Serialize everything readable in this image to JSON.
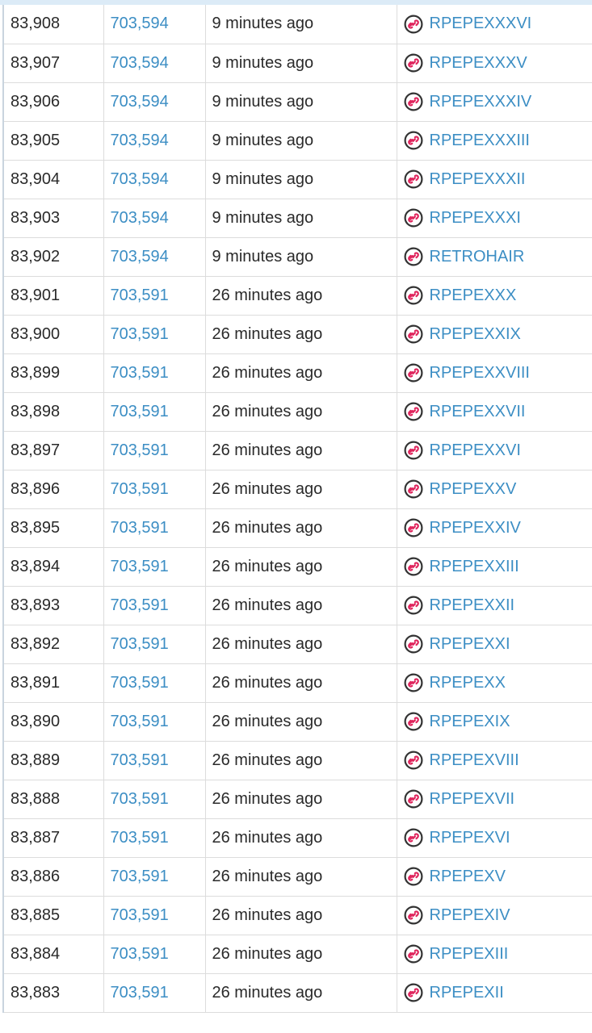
{
  "colors": {
    "link": "#3c8ec4",
    "text": "#2a2a2a",
    "icon_outline": "#333333",
    "icon_accent": "#e0255d",
    "header_strip": "#dcebf7"
  },
  "asset_icon": "chain-link-icon",
  "rows": [
    {
      "id": "83,908",
      "block": "703,594",
      "time": "9 minutes ago",
      "asset": "RPEPEXXXVI"
    },
    {
      "id": "83,907",
      "block": "703,594",
      "time": "9 minutes ago",
      "asset": "RPEPEXXXV"
    },
    {
      "id": "83,906",
      "block": "703,594",
      "time": "9 minutes ago",
      "asset": "RPEPEXXXIV"
    },
    {
      "id": "83,905",
      "block": "703,594",
      "time": "9 minutes ago",
      "asset": "RPEPEXXXIII"
    },
    {
      "id": "83,904",
      "block": "703,594",
      "time": "9 minutes ago",
      "asset": "RPEPEXXXII"
    },
    {
      "id": "83,903",
      "block": "703,594",
      "time": "9 minutes ago",
      "asset": "RPEPEXXXI"
    },
    {
      "id": "83,902",
      "block": "703,594",
      "time": "9 minutes ago",
      "asset": "RETROHAIR"
    },
    {
      "id": "83,901",
      "block": "703,591",
      "time": "26 minutes ago",
      "asset": "RPEPEXXX"
    },
    {
      "id": "83,900",
      "block": "703,591",
      "time": "26 minutes ago",
      "asset": "RPEPEXXIX"
    },
    {
      "id": "83,899",
      "block": "703,591",
      "time": "26 minutes ago",
      "asset": "RPEPEXXVIII"
    },
    {
      "id": "83,898",
      "block": "703,591",
      "time": "26 minutes ago",
      "asset": "RPEPEXXVII"
    },
    {
      "id": "83,897",
      "block": "703,591",
      "time": "26 minutes ago",
      "asset": "RPEPEXXVI"
    },
    {
      "id": "83,896",
      "block": "703,591",
      "time": "26 minutes ago",
      "asset": "RPEPEXXV"
    },
    {
      "id": "83,895",
      "block": "703,591",
      "time": "26 minutes ago",
      "asset": "RPEPEXXIV"
    },
    {
      "id": "83,894",
      "block": "703,591",
      "time": "26 minutes ago",
      "asset": "RPEPEXXIII"
    },
    {
      "id": "83,893",
      "block": "703,591",
      "time": "26 minutes ago",
      "asset": "RPEPEXXII"
    },
    {
      "id": "83,892",
      "block": "703,591",
      "time": "26 minutes ago",
      "asset": "RPEPEXXI"
    },
    {
      "id": "83,891",
      "block": "703,591",
      "time": "26 minutes ago",
      "asset": "RPEPEXX"
    },
    {
      "id": "83,890",
      "block": "703,591",
      "time": "26 minutes ago",
      "asset": "RPEPEXIX"
    },
    {
      "id": "83,889",
      "block": "703,591",
      "time": "26 minutes ago",
      "asset": "RPEPEXVIII"
    },
    {
      "id": "83,888",
      "block": "703,591",
      "time": "26 minutes ago",
      "asset": "RPEPEXVII"
    },
    {
      "id": "83,887",
      "block": "703,591",
      "time": "26 minutes ago",
      "asset": "RPEPEXVI"
    },
    {
      "id": "83,886",
      "block": "703,591",
      "time": "26 minutes ago",
      "asset": "RPEPEXV"
    },
    {
      "id": "83,885",
      "block": "703,591",
      "time": "26 minutes ago",
      "asset": "RPEPEXIV"
    },
    {
      "id": "83,884",
      "block": "703,591",
      "time": "26 minutes ago",
      "asset": "RPEPEXIII"
    },
    {
      "id": "83,883",
      "block": "703,591",
      "time": "26 minutes ago",
      "asset": "RPEPEXII"
    }
  ]
}
